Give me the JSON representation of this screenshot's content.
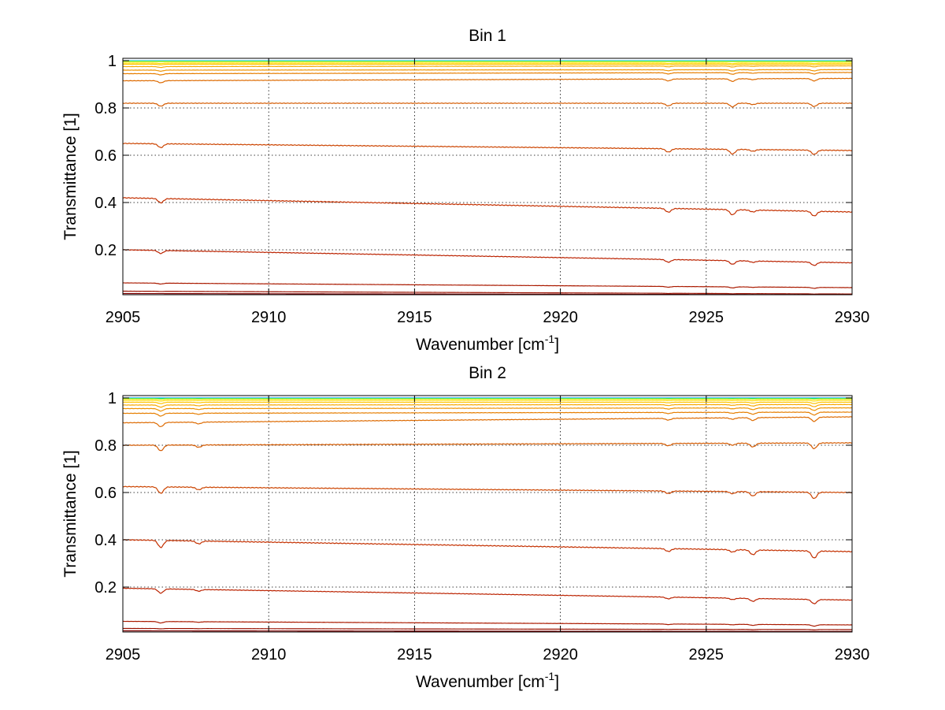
{
  "chart_data": [
    {
      "type": "line",
      "title": "Bin 1",
      "xlabel": "Wavenumber [cm",
      "xlabel_sup": "-1",
      "xlabel_end": "]",
      "ylabel": "Transmittance [1]",
      "xlim": [
        2905,
        2930
      ],
      "ylim": [
        0.01,
        1.01
      ],
      "xticks": [
        "2905",
        "2910",
        "2915",
        "2920",
        "2925",
        "2930"
      ],
      "yticks": [
        "0.2",
        "0.4",
        "0.6",
        "0.8",
        "1"
      ],
      "grid": true,
      "dips": [
        {
          "x": 2906.3,
          "d": 0.018
        },
        {
          "x": 2923.7,
          "d": 0.016
        },
        {
          "x": 2925.9,
          "d": 0.022
        },
        {
          "x": 2926.6,
          "d": 0.008
        },
        {
          "x": 2928.7,
          "d": 0.02
        }
      ],
      "series": [
        {
          "start": 1.0,
          "end": 1.0,
          "color": "#33ccff",
          "dip": 0.0
        },
        {
          "start": 0.998,
          "end": 0.998,
          "color": "#00e0a0",
          "dip": 0.0
        },
        {
          "start": 0.996,
          "end": 0.996,
          "color": "#ccee00",
          "dip": 0.0
        },
        {
          "start": 0.99,
          "end": 0.99,
          "color": "#ffdd00",
          "dip": 0.1
        },
        {
          "start": 0.985,
          "end": 0.985,
          "color": "#ffc400",
          "dip": 0.15
        },
        {
          "start": 0.975,
          "end": 0.978,
          "color": "#f7a800",
          "dip": 0.2
        },
        {
          "start": 0.96,
          "end": 0.962,
          "color": "#ee9200",
          "dip": 0.25
        },
        {
          "start": 0.945,
          "end": 0.95,
          "color": "#e67e00",
          "dip": 0.3
        },
        {
          "start": 0.915,
          "end": 0.925,
          "color": "#dd6a00",
          "dip": 0.5
        },
        {
          "start": 0.82,
          "end": 0.82,
          "color": "#d45a00",
          "dip": 0.7
        },
        {
          "start": 0.65,
          "end": 0.62,
          "color": "#cc4400",
          "dip": 0.9
        },
        {
          "start": 0.42,
          "end": 0.36,
          "color": "#c43000",
          "dip": 1.0
        },
        {
          "start": 0.2,
          "end": 0.145,
          "color": "#bb2200",
          "dip": 0.7
        },
        {
          "start": 0.06,
          "end": 0.04,
          "color": "#aa1a00",
          "dip": 0.2
        },
        {
          "start": 0.025,
          "end": 0.013,
          "color": "#991100",
          "dip": 0.05
        },
        {
          "start": 0.015,
          "end": 0.01,
          "color": "#800000",
          "dip": 0.0
        }
      ]
    },
    {
      "type": "line",
      "title": "Bin 2",
      "xlabel": "Wavenumber [cm",
      "xlabel_sup": "-1",
      "xlabel_end": "]",
      "ylabel": "Transmittance [1]",
      "xlim": [
        2905,
        2930
      ],
      "ylim": [
        0.01,
        1.01
      ],
      "xticks": [
        "2905",
        "2910",
        "2915",
        "2920",
        "2925",
        "2930"
      ],
      "yticks": [
        "0.2",
        "0.4",
        "0.6",
        "0.8",
        "1"
      ],
      "grid": true,
      "dips": [
        {
          "x": 2906.3,
          "d": 0.03
        },
        {
          "x": 2907.6,
          "d": 0.012
        },
        {
          "x": 2923.7,
          "d": 0.012
        },
        {
          "x": 2925.9,
          "d": 0.01
        },
        {
          "x": 2926.6,
          "d": 0.02
        },
        {
          "x": 2928.7,
          "d": 0.03
        }
      ],
      "series": [
        {
          "start": 1.0,
          "end": 1.0,
          "color": "#00a0ff",
          "dip": 0.0
        },
        {
          "start": 0.998,
          "end": 0.998,
          "color": "#00e0a0",
          "dip": 0.0
        },
        {
          "start": 0.996,
          "end": 0.996,
          "color": "#ccee00",
          "dip": 0.05
        },
        {
          "start": 0.99,
          "end": 0.99,
          "color": "#ffdd00",
          "dip": 0.1
        },
        {
          "start": 0.982,
          "end": 0.982,
          "color": "#ffc400",
          "dip": 0.2
        },
        {
          "start": 0.97,
          "end": 0.972,
          "color": "#f7a800",
          "dip": 0.3
        },
        {
          "start": 0.955,
          "end": 0.958,
          "color": "#ee9200",
          "dip": 0.35
        },
        {
          "start": 0.935,
          "end": 0.94,
          "color": "#e67e00",
          "dip": 0.4
        },
        {
          "start": 0.895,
          "end": 0.92,
          "color": "#dd6a00",
          "dip": 0.6
        },
        {
          "start": 0.8,
          "end": 0.81,
          "color": "#d45a00",
          "dip": 0.8
        },
        {
          "start": 0.625,
          "end": 0.6,
          "color": "#cc4400",
          "dip": 0.9
        },
        {
          "start": 0.4,
          "end": 0.35,
          "color": "#c43000",
          "dip": 1.0
        },
        {
          "start": 0.195,
          "end": 0.145,
          "color": "#bb2200",
          "dip": 0.6
        },
        {
          "start": 0.055,
          "end": 0.04,
          "color": "#aa1a00",
          "dip": 0.2
        },
        {
          "start": 0.025,
          "end": 0.02,
          "color": "#991100",
          "dip": 0.05
        },
        {
          "start": 0.015,
          "end": 0.012,
          "color": "#800000",
          "dip": 0.0
        }
      ]
    }
  ]
}
